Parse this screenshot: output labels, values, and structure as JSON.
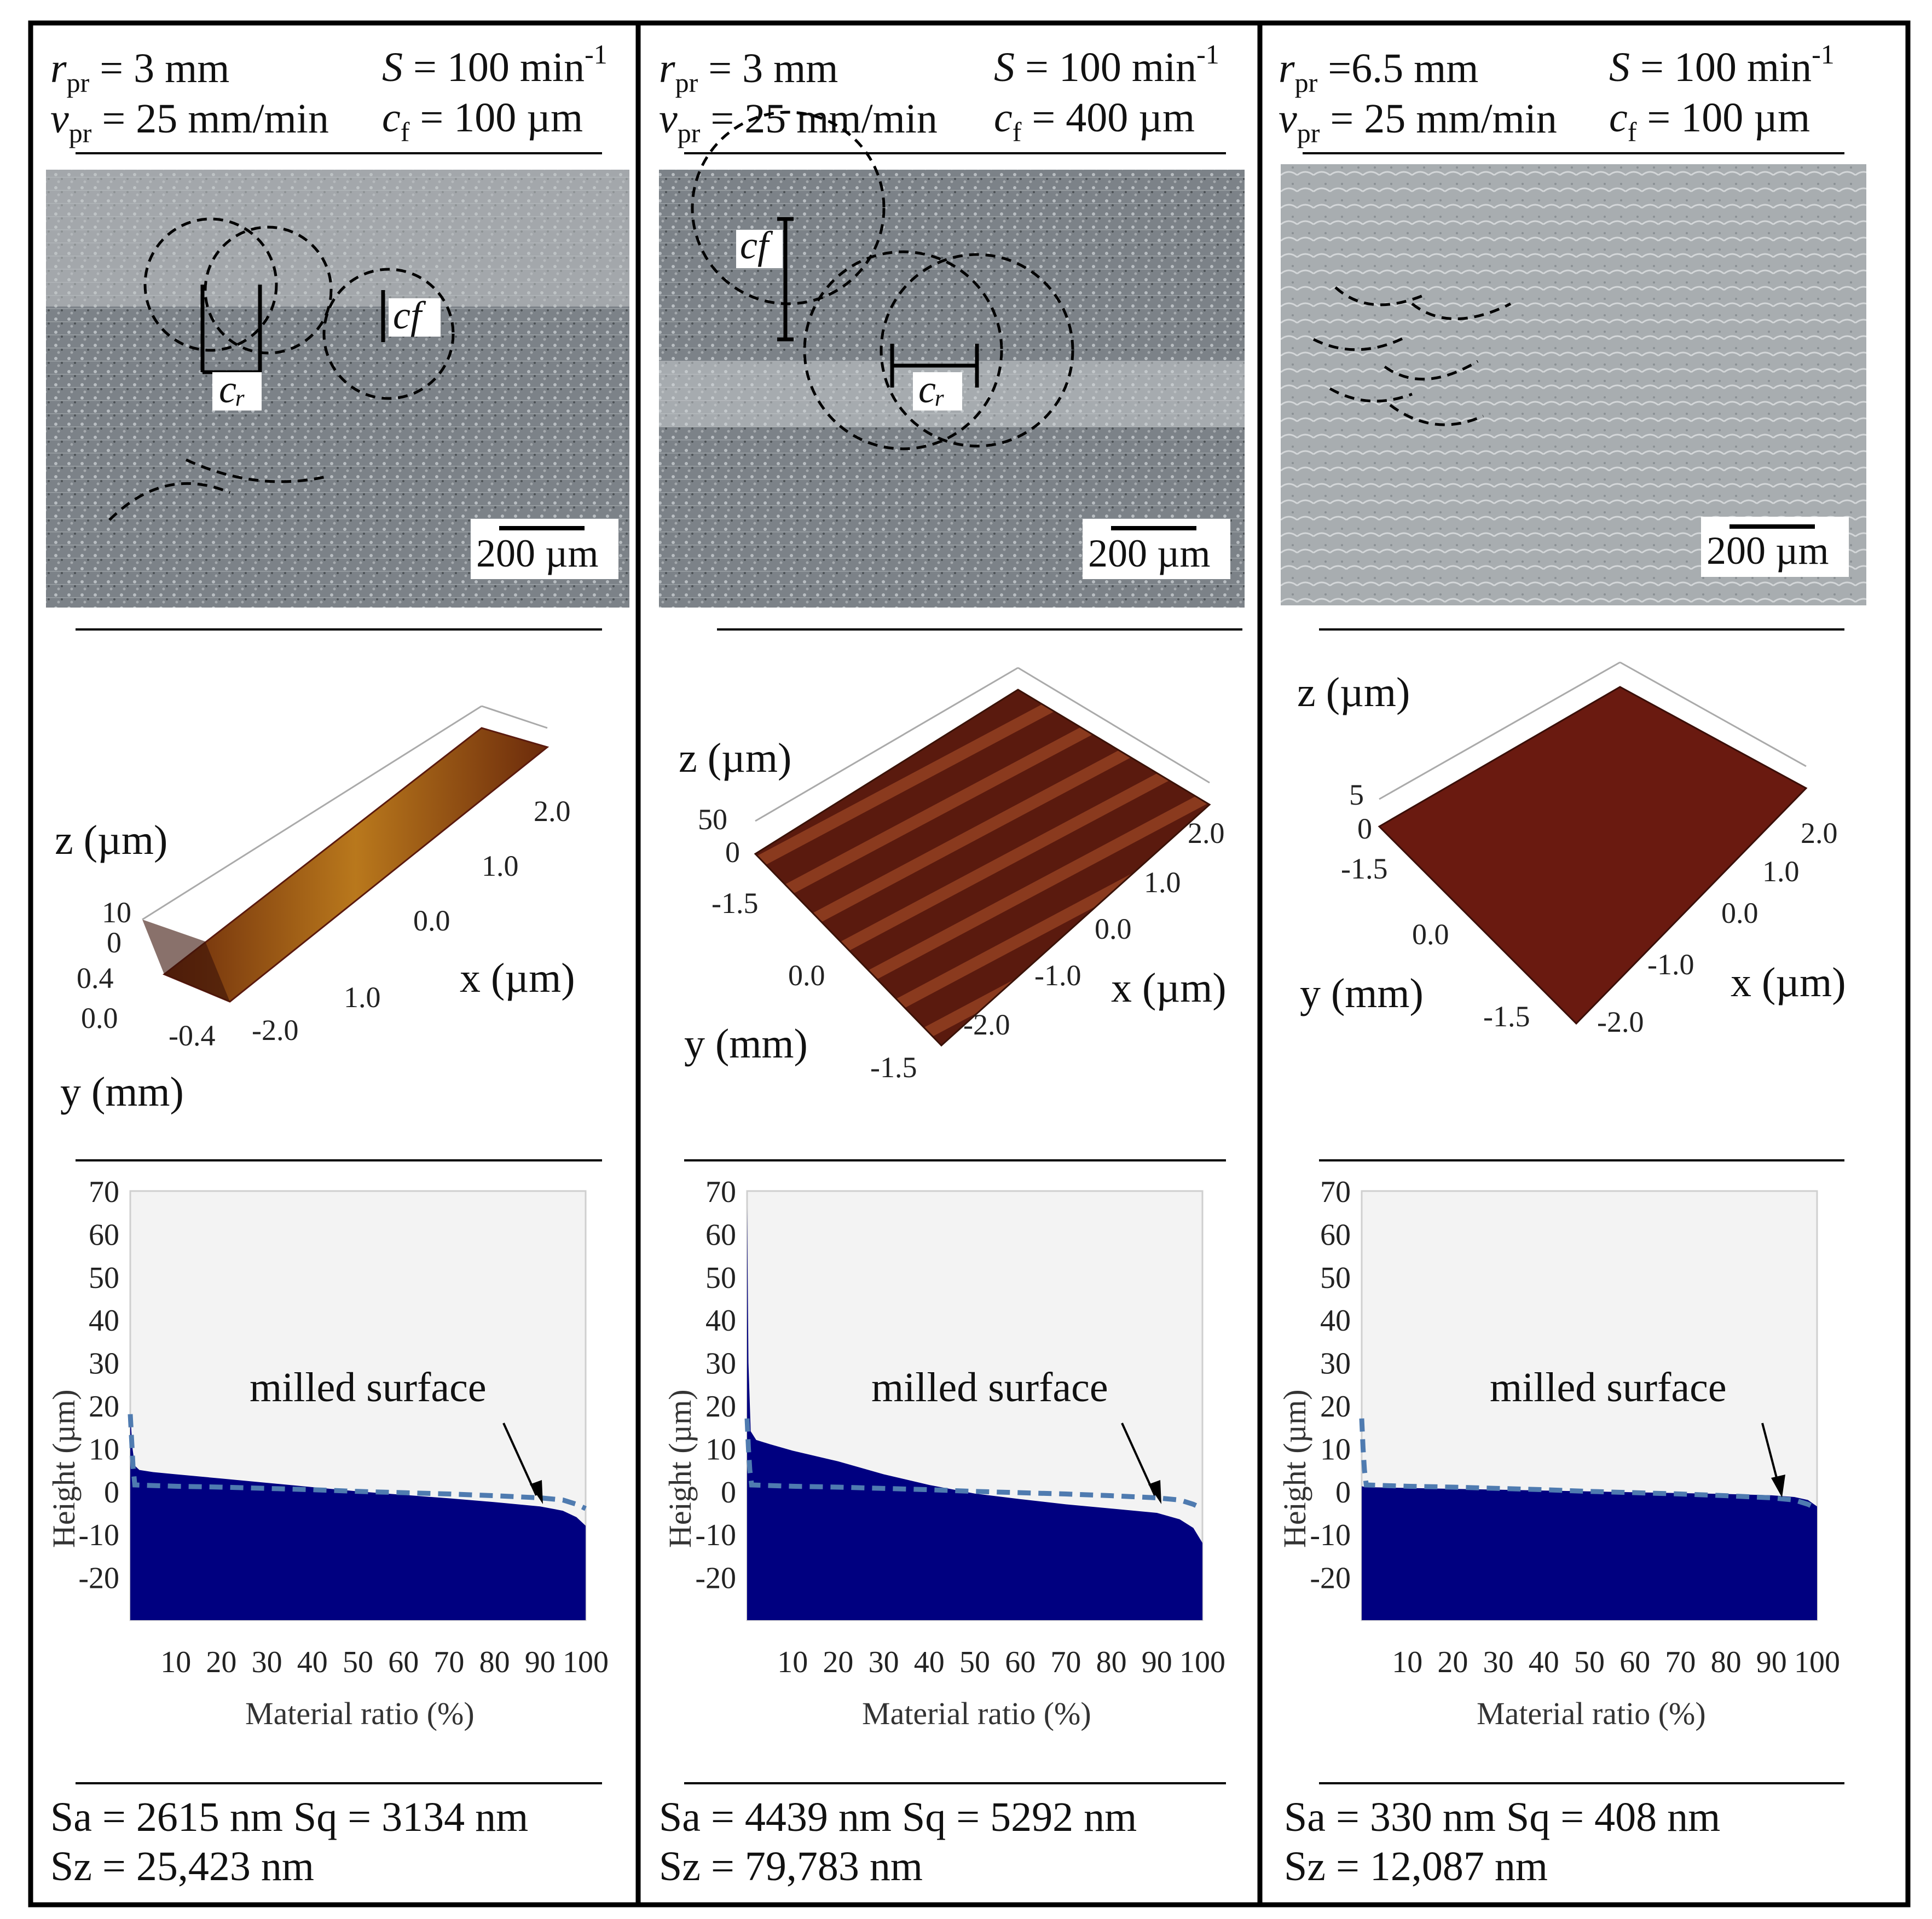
{
  "labels": {
    "height": "Height  (µm)",
    "material_ratio": "Material ratio (%)",
    "milled_surface": "milled surface"
  },
  "p1": {
    "p": {
      "r_sub": "pr",
      "r_val": " = 3 mm",
      "v_sub": "pr",
      "v_val": " = 25 mm/min",
      "s_val": " = 100 min",
      "s_sup": "-1",
      "c_sub": "f",
      "c_val": " = 100 µm"
    },
    "cr_label": "cᵣ",
    "cf_label": "cf",
    "scale_bar": "200 µm",
    "axes": {
      "z": "z (µm)",
      "x": "x (µm)",
      "y": "y (mm)"
    },
    "ticks": {
      "z0": "10",
      "z1": "0",
      "y0": "0.4",
      "y1": "0.0",
      "y2": "-0.4",
      "x0": "2.0",
      "x1": "1.0",
      "x2": "0.0",
      "x3": "1.0",
      "x4": "-2.0"
    },
    "stats": {
      "line1": "Sa = 2615 nm   Sq = 3134 nm",
      "line2": "Sz = 25,423 nm"
    }
  },
  "p2": {
    "p": {
      "r_sub": "pr",
      "r_val": " = 3 mm",
      "v_sub": "pr",
      "v_val": " = 25 mm/min",
      "s_val": " = 100 min",
      "s_sup": "-1",
      "c_sub": "f",
      "c_val": " = 400 µm"
    },
    "cr_label": "cᵣ",
    "cf_label": "cf",
    "scale_bar": "200 µm",
    "axes": {
      "z": "z (µm)",
      "x": "x (µm)",
      "y": "y (mm)"
    },
    "ticks": {
      "z0": "50",
      "z1": "0",
      "y0": "-1.5",
      "y1": "0.0",
      "y2": "-1.5",
      "x0": "2.0",
      "x1": "1.0",
      "x2": "0.0",
      "x3": "-1.0",
      "x4": "-2.0"
    },
    "stats": {
      "line1": "Sa = 4439 nm   Sq = 5292 nm",
      "line2": "Sz = 79,783 nm"
    }
  },
  "p3": {
    "p": {
      "r_sub": "pr",
      "r_val": " =6.5 mm",
      "v_sub": "pr",
      "v_val": " = 25 mm/min",
      "s_val": " = 100 min",
      "s_sup": "-1",
      "c_sub": "f",
      "c_val": " = 100 µm"
    },
    "scale_bar": "200 µm",
    "axes": {
      "z": "z (µm)",
      "x": "x (µm)",
      "y": "y (mm)"
    },
    "ticks": {
      "z0": "5",
      "z1": "0",
      "y0": "-1.5",
      "y1": "0.0",
      "y2": "-1.5",
      "x0": "2.0",
      "x1": "1.0",
      "x2": "0.0",
      "x3": "-1.0",
      "x4": "-2.0"
    },
    "stats": {
      "line1": "Sa = 330 nm      Sq = 408 nm",
      "line2": "Sz = 12,087 nm"
    }
  },
  "chart_data": [
    {
      "type": "area",
      "xlabel": "Material ratio (%)",
      "ylabel": "Height  (µm)",
      "xlim": [
        0,
        100
      ],
      "ylim": [
        -30,
        70
      ],
      "x_ticks": [
        10,
        20,
        30,
        40,
        50,
        60,
        70,
        80,
        90,
        100
      ],
      "y_ticks": [
        -20,
        -10,
        0,
        10,
        20,
        30,
        40,
        50,
        60,
        70
      ],
      "annotation": "milled surface",
      "colors": {
        "area": "#000080",
        "reference": "#4f7bb0"
      },
      "series": [
        {
          "kind": "area",
          "x": [
            0,
            0.5,
            1,
            2,
            5,
            10,
            20,
            30,
            40,
            50,
            60,
            70,
            80,
            90,
            95,
            98,
            100
          ],
          "y": [
            18,
            10,
            6,
            5,
            4.5,
            4,
            3,
            2,
            1,
            0,
            -0.8,
            -1.6,
            -2.5,
            -3.5,
            -4.5,
            -6,
            -8
          ]
        },
        {
          "kind": "dashed",
          "x": [
            0,
            0.3,
            0.6,
            1,
            10,
            20,
            30,
            40,
            50,
            60,
            70,
            80,
            90,
            95,
            98,
            100
          ],
          "y": [
            18,
            12,
            6,
            1.5,
            1.2,
            1,
            0.7,
            0.4,
            0,
            -0.3,
            -0.6,
            -1,
            -1.5,
            -2,
            -3,
            -4
          ]
        }
      ]
    },
    {
      "type": "area",
      "xlabel": "Material ratio (%)",
      "ylabel": "Height  (µm)",
      "xlim": [
        0,
        100
      ],
      "ylim": [
        -30,
        70
      ],
      "x_ticks": [
        10,
        20,
        30,
        40,
        50,
        60,
        70,
        80,
        90,
        100
      ],
      "y_ticks": [
        -20,
        -10,
        0,
        10,
        20,
        30,
        40,
        50,
        60,
        70
      ],
      "annotation": "milled surface",
      "colors": {
        "area": "#000080",
        "reference": "#4f7bb0"
      },
      "series": [
        {
          "kind": "area",
          "x": [
            0,
            0.3,
            0.8,
            2,
            5,
            10,
            20,
            30,
            40,
            50,
            60,
            70,
            80,
            90,
            95,
            98,
            100
          ],
          "y": [
            66,
            30,
            14,
            12,
            11,
            9.5,
            7,
            4,
            1.5,
            -0.5,
            -1.8,
            -3,
            -4,
            -5,
            -6.5,
            -8.5,
            -12
          ]
        },
        {
          "kind": "dashed",
          "x": [
            0,
            0.3,
            0.6,
            1,
            10,
            20,
            30,
            40,
            50,
            60,
            70,
            80,
            90,
            95,
            98,
            100
          ],
          "y": [
            17,
            10,
            5,
            1.5,
            1.2,
            1,
            0.7,
            0.4,
            0,
            -0.3,
            -0.6,
            -1,
            -1.5,
            -2,
            -3,
            -4
          ]
        }
      ]
    },
    {
      "type": "area",
      "xlabel": "Material ratio (%)",
      "ylabel": "Height  (µm)",
      "xlim": [
        0,
        100
      ],
      "ylim": [
        -30,
        70
      ],
      "x_ticks": [
        10,
        20,
        30,
        40,
        50,
        60,
        70,
        80,
        90,
        100
      ],
      "y_ticks": [
        -20,
        -10,
        0,
        10,
        20,
        30,
        40,
        50,
        60,
        70
      ],
      "annotation": "milled surface",
      "colors": {
        "area": "#000080",
        "reference": "#4f7bb0"
      },
      "series": [
        {
          "kind": "area",
          "x": [
            0,
            1,
            10,
            20,
            30,
            40,
            50,
            60,
            70,
            80,
            90,
            95,
            98,
            100
          ],
          "y": [
            1.2,
            1,
            0.8,
            0.6,
            0.4,
            0.2,
            0,
            -0.2,
            -0.4,
            -0.6,
            -0.9,
            -1.3,
            -2,
            -3.5
          ]
        },
        {
          "kind": "dashed",
          "x": [
            0,
            0.3,
            0.6,
            1,
            10,
            20,
            30,
            40,
            50,
            60,
            70,
            80,
            90,
            95,
            98,
            100
          ],
          "y": [
            17,
            10,
            5,
            1.5,
            1.2,
            1,
            0.7,
            0.4,
            0,
            -0.3,
            -0.6,
            -1,
            -1.5,
            -2,
            -3,
            -4
          ]
        }
      ]
    }
  ]
}
